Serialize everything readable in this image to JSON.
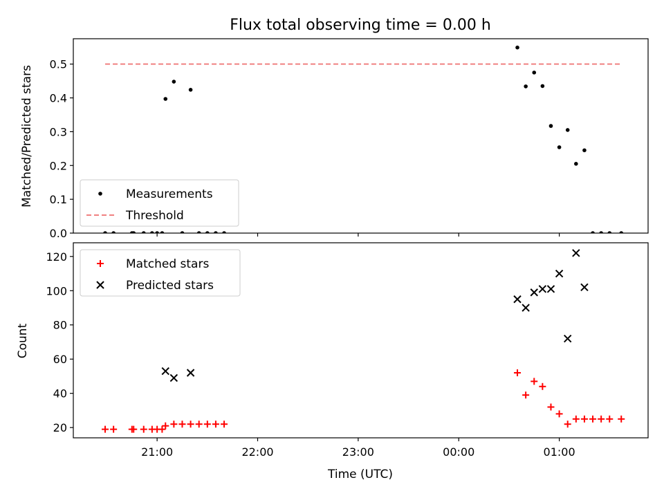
{
  "chart_data": [
    {
      "type": "scatter",
      "title": "Flux total observing time = 0.00 h",
      "xlabel": "",
      "ylabel": "Matched/Predicted stars",
      "ylim": [
        0,
        0.575
      ],
      "yticks": [
        "0.0",
        "0.1",
        "0.2",
        "0.3",
        "0.4",
        "0.5"
      ],
      "x_axis": "time UTC (shared with lower panel)",
      "grid": false,
      "legend_position": "lower-left",
      "series": [
        {
          "name": "Measurements",
          "marker": "dot",
          "color": "#000000",
          "points": [
            {
              "t": "20:29",
              "y": 0
            },
            {
              "t": "20:34",
              "y": 0
            },
            {
              "t": "20:45",
              "y": 0
            },
            {
              "t": "20:46",
              "y": 0
            },
            {
              "t": "20:52",
              "y": 0
            },
            {
              "t": "20:57",
              "y": 0
            },
            {
              "t": "21:03",
              "y": 0
            },
            {
              "t": "21:00",
              "y": 0
            },
            {
              "t": "21:05",
              "y": 0.397
            },
            {
              "t": "21:10",
              "y": 0.448
            },
            {
              "t": "21:15",
              "y": 0
            },
            {
              "t": "21:20",
              "y": 0.424
            },
            {
              "t": "21:25",
              "y": 0
            },
            {
              "t": "21:30",
              "y": 0
            },
            {
              "t": "21:35",
              "y": 0
            },
            {
              "t": "21:40",
              "y": 0
            },
            {
              "t": "00:35",
              "y": 0.549
            },
            {
              "t": "00:40",
              "y": 0.434
            },
            {
              "t": "00:45",
              "y": 0.475
            },
            {
              "t": "00:50",
              "y": 0.435
            },
            {
              "t": "00:55",
              "y": 0.317
            },
            {
              "t": "01:00",
              "y": 0.254
            },
            {
              "t": "01:05",
              "y": 0.305
            },
            {
              "t": "01:10",
              "y": 0.205
            },
            {
              "t": "01:15",
              "y": 0.245
            },
            {
              "t": "01:20",
              "y": 0
            },
            {
              "t": "01:25",
              "y": 0
            },
            {
              "t": "01:30",
              "y": 0
            },
            {
              "t": "01:37",
              "y": 0
            }
          ]
        },
        {
          "name": "Threshold",
          "marker": "dashed-line",
          "color": "#f08080",
          "points": [
            {
              "t": "20:29",
              "y": 0.5
            },
            {
              "t": "01:37",
              "y": 0.5
            }
          ]
        }
      ]
    },
    {
      "type": "scatter",
      "title": "",
      "xlabel": "Time (UTC)",
      "ylabel": "Count",
      "ylim": [
        14,
        128
      ],
      "yticks": [
        "20",
        "40",
        "60",
        "80",
        "100",
        "120"
      ],
      "xticks": [
        "21:00",
        "22:00",
        "23:00",
        "00:00",
        "01:00"
      ],
      "x_axis": "time UTC from 20:10 to 01:53 (next day)",
      "grid": false,
      "legend_position": "upper-left",
      "series": [
        {
          "name": "Matched stars",
          "marker": "plus",
          "color": "#ff0000",
          "points": [
            {
              "t": "20:29",
              "y": 19
            },
            {
              "t": "20:34",
              "y": 19
            },
            {
              "t": "20:45",
              "y": 19
            },
            {
              "t": "20:46",
              "y": 19
            },
            {
              "t": "20:52",
              "y": 19
            },
            {
              "t": "20:57",
              "y": 19
            },
            {
              "t": "21:03",
              "y": 19
            },
            {
              "t": "21:00",
              "y": 19
            },
            {
              "t": "21:05",
              "y": 21
            },
            {
              "t": "21:10",
              "y": 22
            },
            {
              "t": "21:15",
              "y": 22
            },
            {
              "t": "21:20",
              "y": 22
            },
            {
              "t": "21:25",
              "y": 22
            },
            {
              "t": "21:30",
              "y": 22
            },
            {
              "t": "21:35",
              "y": 22
            },
            {
              "t": "21:40",
              "y": 22
            },
            {
              "t": "00:35",
              "y": 52
            },
            {
              "t": "00:40",
              "y": 39
            },
            {
              "t": "00:45",
              "y": 47
            },
            {
              "t": "00:50",
              "y": 44
            },
            {
              "t": "00:55",
              "y": 32
            },
            {
              "t": "01:00",
              "y": 28
            },
            {
              "t": "01:05",
              "y": 22
            },
            {
              "t": "01:10",
              "y": 25
            },
            {
              "t": "01:15",
              "y": 25
            },
            {
              "t": "01:20",
              "y": 25
            },
            {
              "t": "01:25",
              "y": 25
            },
            {
              "t": "01:30",
              "y": 25
            },
            {
              "t": "01:37",
              "y": 25
            }
          ]
        },
        {
          "name": "Predicted stars",
          "marker": "x",
          "color": "#000000",
          "points": [
            {
              "t": "21:05",
              "y": 53
            },
            {
              "t": "21:10",
              "y": 49
            },
            {
              "t": "21:20",
              "y": 52
            },
            {
              "t": "00:35",
              "y": 95
            },
            {
              "t": "00:40",
              "y": 90
            },
            {
              "t": "00:45",
              "y": 99
            },
            {
              "t": "00:50",
              "y": 101
            },
            {
              "t": "00:55",
              "y": 101
            },
            {
              "t": "01:00",
              "y": 110
            },
            {
              "t": "01:05",
              "y": 72
            },
            {
              "t": "01:10",
              "y": 122
            },
            {
              "t": "01:15",
              "y": 102
            }
          ]
        }
      ]
    }
  ]
}
